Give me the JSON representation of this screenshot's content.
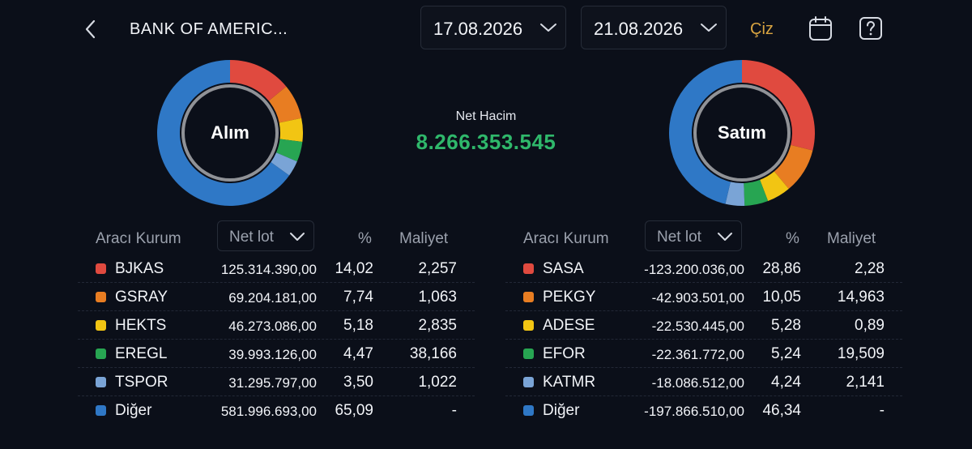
{
  "header": {
    "title": "BANK OF AMERIC...",
    "start_date": "17.08.2026",
    "end_date": "21.08.2026",
    "draw_label": "Çiz",
    "icons": {
      "back": "chevron-left-icon",
      "calendar": "calendar-icon",
      "help": "help-icon"
    }
  },
  "summary": {
    "buy_label": "Alım",
    "sell_label": "Satım",
    "net_label": "Net Hacim",
    "net_value": "8.266.353.545",
    "net_color": "#2fb86b"
  },
  "columns": {
    "broker": "Aracı Kurum",
    "sort": "Net lot",
    "percent": "%",
    "cost": "Maliyet"
  },
  "buy": [
    {
      "name": "BJKAS",
      "lot": "125.314.390,00",
      "pct": "14,02",
      "cost": "2,257",
      "color": "#e04a3f"
    },
    {
      "name": "GSRAY",
      "lot": "69.204.181,00",
      "pct": "7,74",
      "cost": "1,063",
      "color": "#e87d22"
    },
    {
      "name": "HEKTS",
      "lot": "46.273.086,00",
      "pct": "5,18",
      "cost": "2,835",
      "color": "#f2c513"
    },
    {
      "name": "EREGL",
      "lot": "39.993.126,00",
      "pct": "4,47",
      "cost": "38,166",
      "color": "#27a552"
    },
    {
      "name": "TSPOR",
      "lot": "31.295.797,00",
      "pct": "3,50",
      "cost": "1,022",
      "color": "#7aa4d6"
    },
    {
      "name": "Diğer",
      "lot": "581.996.693,00",
      "pct": "65,09",
      "cost": "-",
      "color": "#2f78c6"
    }
  ],
  "sell": [
    {
      "name": "SASA",
      "lot": "-123.200.036,00",
      "pct": "28,86",
      "cost": "2,28",
      "color": "#e04a3f"
    },
    {
      "name": "PEKGY",
      "lot": "-42.903.501,00",
      "pct": "10,05",
      "cost": "14,963",
      "color": "#e87d22"
    },
    {
      "name": "ADESE",
      "lot": "-22.530.445,00",
      "pct": "5,28",
      "cost": "0,89",
      "color": "#f2c513"
    },
    {
      "name": "EFOR",
      "lot": "-22.361.772,00",
      "pct": "5,24",
      "cost": "19,509",
      "color": "#27a552"
    },
    {
      "name": "KATMR",
      "lot": "-18.086.512,00",
      "pct": "4,24",
      "cost": "2,141",
      "color": "#7aa4d6"
    },
    {
      "name": "Diğer",
      "lot": "-197.866.510,00",
      "pct": "46,34",
      "cost": "-",
      "color": "#2f78c6"
    }
  ]
}
